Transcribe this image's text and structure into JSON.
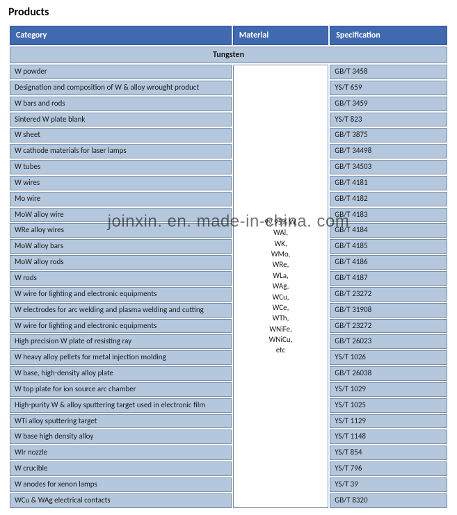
{
  "title": "Products",
  "columns": {
    "category": "Category",
    "material": "Material",
    "specification": "Specification"
  },
  "col_widths": {
    "category": "51%",
    "material": "22%",
    "specification": "27%"
  },
  "section_title": "Tungsten",
  "material_cell": "99.95% W,\nWAl,\nWK,\nWMo,\nWRe,\nWLa,\nWAg,\nWCu,\nWCe,\nWTh,\nWNiFe,\nWNiCu,\netc",
  "rows": [
    {
      "category": "W powder",
      "spec": "GB/T 3458"
    },
    {
      "category": "Designation and composition of W & alloy wrought product",
      "spec": "YS/T 659"
    },
    {
      "category": "W bars and rods",
      "spec": "GB/T 3459"
    },
    {
      "category": "Sintered W plate blank",
      "spec": "YS/T 823"
    },
    {
      "category": "W sheet",
      "spec": "GB/T 3875"
    },
    {
      "category": "W cathode materials for laser lamps",
      "spec": "GB/T 34498"
    },
    {
      "category": "W tubes",
      "spec": "GB/T 34503"
    },
    {
      "category": "W wires",
      "spec": "GB/T 4181"
    },
    {
      "category": "Mo wire",
      "spec": "GB/T 4182"
    },
    {
      "category": "MoW alloy wire",
      "spec": "GB/T 4183"
    },
    {
      "category": "WRe alloy wires",
      "spec": "GB/T 4184"
    },
    {
      "category": "MoW alloy bars",
      "spec": "GB/T 4185"
    },
    {
      "category": "MoW alloy rods",
      "spec": "GB/T 4186"
    },
    {
      "category": "W rods",
      "spec": "GB/T 4187"
    },
    {
      "category": "W wire for lighting and electronic equipments",
      "spec": "GB/T 23272"
    },
    {
      "category": "W electrodes for arc welding and plasma welding and cutting",
      "spec": "GB/T 31908"
    },
    {
      "category": "W wire for lighting and electronic equipments",
      "spec": "GB/T 23272"
    },
    {
      "category": "High precision W plate of resisting ray",
      "spec": "GB/T 26023"
    },
    {
      "category": "W heavy alloy pellets for metal injection molding",
      "spec": "YS/T 1026"
    },
    {
      "category": "W base, high-density alloy plate",
      "spec": "GB/T 26038"
    },
    {
      "category": "W top plate for ion source arc chamber",
      "spec": "YS/T 1029"
    },
    {
      "category": "High-purity W & alloy sputtering target used in electronic film",
      "spec": "YS/T 1025"
    },
    {
      "category": "WTi alloy sputtering target",
      "spec": "YS/T 1129"
    },
    {
      "category": "W base high density alloy",
      "spec": "YS/T 1148"
    },
    {
      "category": "WIr nozzle",
      "spec": "YS/T 854"
    },
    {
      "category": "W crucible",
      "spec": "YS/T 796"
    },
    {
      "category": "W anodes for xenon lamps",
      "spec": "YS/T 39"
    },
    {
      "category": "WCu & WAg electrical contacts",
      "spec": "GB/T 8320"
    }
  ],
  "watermark": "joinxin. en. made-in-china. com",
  "colors": {
    "header_bg": "#4169b0",
    "header_text": "#ffffff",
    "cell_bg": "#b4c7dc",
    "cell_text": "#1a1a1a",
    "border": "#7a8fa8"
  }
}
